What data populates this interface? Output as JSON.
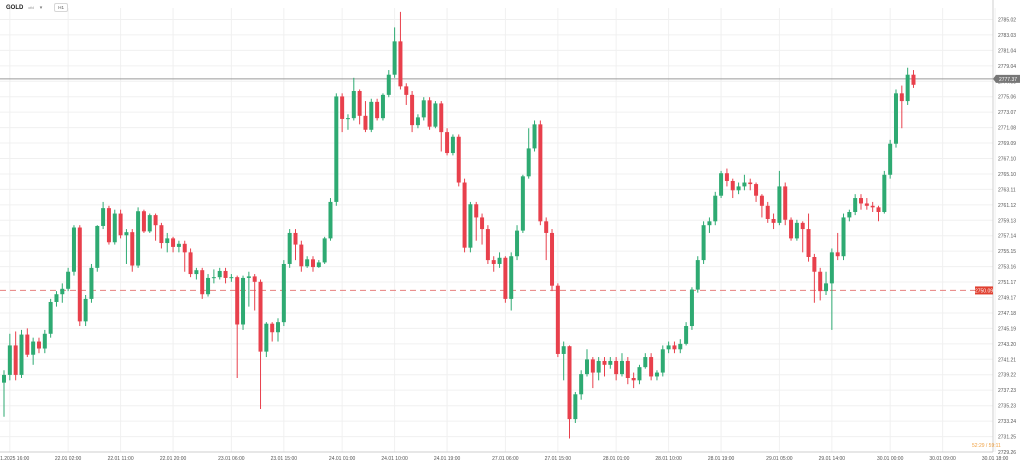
{
  "header": {
    "symbol": "GOLD",
    "symbol_sub": "cfd",
    "timeframe": "H1"
  },
  "colors": {
    "up": "#2eaa72",
    "down": "#e8404c",
    "grid": "#f0f0f0",
    "price_line": "#9a9a9a",
    "price_tag": "#777777",
    "ref_line": "#e8807e",
    "ref_tag": "#e04030",
    "countdown": "#f0a040"
  },
  "countdown": "52:29 / 59:11",
  "chart_data": {
    "type": "candlestick",
    "y_range": [
      2729.26,
      2786.5
    ],
    "y_ticks": [
      "2785.02",
      "2783.03",
      "2781.04",
      "2779.04",
      "2777.05",
      "2775.06",
      "2773.07",
      "2771.08",
      "2769.09",
      "2767.10",
      "2765.10",
      "2763.11",
      "2761.12",
      "2759.13",
      "2757.14",
      "2755.15",
      "2753.16",
      "2751.17",
      "2749.17",
      "2747.18",
      "2745.19",
      "2743.20",
      "2741.21",
      "2739.22",
      "2737.23",
      "2735.23",
      "2733.24",
      "2731.25",
      "2729.26"
    ],
    "x_ticks": [
      {
        "label": "21.01.2025  16:00",
        "index": 1
      },
      {
        "label": "22.01  02:00",
        "index": 11
      },
      {
        "label": "22.01  11:00",
        "index": 20
      },
      {
        "label": "22.01  20:00",
        "index": 29
      },
      {
        "label": "23.01  06:00",
        "index": 39
      },
      {
        "label": "23.01  15:00",
        "index": 48
      },
      {
        "label": "24.01  01:00",
        "index": 58
      },
      {
        "label": "24.01  10:00",
        "index": 67
      },
      {
        "label": "24.01  19:00",
        "index": 76
      },
      {
        "label": "27.01  06:00",
        "index": 86
      },
      {
        "label": "27.01  15:00",
        "index": 95
      },
      {
        "label": "28.01  01:00",
        "index": 105
      },
      {
        "label": "28.01  10:00",
        "index": 114
      },
      {
        "label": "28.01  19:00",
        "index": 123
      },
      {
        "label": "29.01  05:00",
        "index": 133
      },
      {
        "label": "29.01  14:00",
        "index": 142
      },
      {
        "label": "30.01  00:00",
        "index": 152
      },
      {
        "label": "30.01  09:00",
        "index": 161
      },
      {
        "label": "30.01  18:00",
        "index": 170
      }
    ],
    "current_price": "2777.37",
    "reference_price": "2750.09",
    "candles": [
      [
        2738.2,
        2739.2,
        2733.8,
        2739.8
      ],
      [
        2739.2,
        2743.0,
        2738.5,
        2744.5
      ],
      [
        2743.0,
        2739.2,
        2738.5,
        2744.8
      ],
      [
        2739.2,
        2744.4,
        2738.8,
        2745.0
      ],
      [
        2744.4,
        2741.8,
        2741.5,
        2745.2
      ],
      [
        2741.8,
        2743.5,
        2740.5,
        2744.0
      ],
      [
        2743.5,
        2742.6,
        2742.0,
        2744.0
      ],
      [
        2742.6,
        2744.5,
        2742.0,
        2745.0
      ],
      [
        2744.5,
        2748.6,
        2744.0,
        2749.0
      ],
      [
        2748.6,
        2749.6,
        2748.0,
        2750.0
      ],
      [
        2749.6,
        2750.3,
        2748.5,
        2751.0
      ],
      [
        2750.3,
        2752.5,
        2750.0,
        2753.0
      ],
      [
        2752.5,
        2758.2,
        2752.0,
        2758.5
      ],
      [
        2758.2,
        2746.1,
        2745.5,
        2758.5
      ],
      [
        2746.1,
        2749.0,
        2745.5,
        2749.5
      ],
      [
        2749.0,
        2753.0,
        2748.5,
        2753.5
      ],
      [
        2753.0,
        2758.4,
        2752.5,
        2758.5
      ],
      [
        2758.4,
        2760.7,
        2758.0,
        2761.5
      ],
      [
        2760.7,
        2756.3,
        2756.0,
        2761.0
      ],
      [
        2756.3,
        2760.0,
        2756.0,
        2760.5
      ],
      [
        2760.0,
        2757.2,
        2756.8,
        2760.5
      ],
      [
        2757.2,
        2757.6,
        2753.5,
        2758.0
      ],
      [
        2757.6,
        2753.3,
        2752.5,
        2758.0
      ],
      [
        2753.3,
        2760.3,
        2753.0,
        2760.8
      ],
      [
        2760.3,
        2757.7,
        2757.5,
        2760.5
      ],
      [
        2757.7,
        2759.8,
        2757.5,
        2760.0
      ],
      [
        2759.8,
        2758.5,
        2756.5,
        2760.0
      ],
      [
        2758.5,
        2756.2,
        2755.5,
        2758.8
      ],
      [
        2756.2,
        2756.8,
        2755.0,
        2757.5
      ],
      [
        2756.8,
        2755.7,
        2755.0,
        2757.0
      ],
      [
        2755.7,
        2756.1,
        2755.0,
        2756.5
      ],
      [
        2756.1,
        2755.0,
        2752.5,
        2756.5
      ],
      [
        2755.0,
        2752.2,
        2751.8,
        2755.5
      ],
      [
        2752.2,
        2752.7,
        2751.5,
        2753.0
      ],
      [
        2752.7,
        2749.6,
        2749.0,
        2753.0
      ],
      [
        2749.6,
        2751.7,
        2749.3,
        2752.2
      ],
      [
        2751.7,
        2751.8,
        2751.0,
        2752.8
      ],
      [
        2751.8,
        2752.6,
        2751.5,
        2753.0
      ],
      [
        2752.6,
        2751.7,
        2751.0,
        2753.0
      ],
      [
        2751.7,
        2751.8,
        2751.2,
        2752.2
      ],
      [
        2751.8,
        2745.7,
        2738.8,
        2752.0
      ],
      [
        2745.7,
        2751.7,
        2745.0,
        2752.0
      ],
      [
        2751.7,
        2751.9,
        2748.0,
        2752.5
      ],
      [
        2751.9,
        2751.2,
        2747.5,
        2752.2
      ],
      [
        2751.2,
        2742.2,
        2734.8,
        2751.5
      ],
      [
        2742.2,
        2745.8,
        2741.5,
        2746.0
      ],
      [
        2745.8,
        2744.7,
        2743.5,
        2746.0
      ],
      [
        2744.7,
        2746.0,
        2743.5,
        2746.5
      ],
      [
        2746.0,
        2753.5,
        2745.5,
        2754.0
      ],
      [
        2753.5,
        2757.5,
        2753.0,
        2758.0
      ],
      [
        2757.5,
        2756.0,
        2754.0,
        2758.0
      ],
      [
        2756.0,
        2753.2,
        2752.5,
        2756.5
      ],
      [
        2753.2,
        2754.1,
        2753.0,
        2754.5
      ],
      [
        2754.1,
        2753.1,
        2752.5,
        2754.5
      ],
      [
        2753.1,
        2753.7,
        2753.0,
        2754.0
      ],
      [
        2753.7,
        2756.8,
        2753.5,
        2757.0
      ],
      [
        2756.8,
        2761.5,
        2756.5,
        2762.0
      ],
      [
        2761.5,
        2775.1,
        2761.0,
        2775.5
      ],
      [
        2775.1,
        2772.2,
        2770.5,
        2775.5
      ],
      [
        2772.2,
        2772.3,
        2770.8,
        2772.8
      ],
      [
        2772.3,
        2775.8,
        2772.0,
        2777.5
      ],
      [
        2775.8,
        2772.6,
        2771.5,
        2776.0
      ],
      [
        2772.6,
        2770.8,
        2770.5,
        2774.5
      ],
      [
        2770.8,
        2774.4,
        2770.5,
        2774.8
      ],
      [
        2774.4,
        2772.3,
        2772.0,
        2774.8
      ],
      [
        2772.3,
        2775.3,
        2772.0,
        2775.5
      ],
      [
        2775.3,
        2777.9,
        2775.0,
        2778.5
      ],
      [
        2777.9,
        2782.2,
        2777.5,
        2784.0
      ],
      [
        2782.2,
        2776.4,
        2776.0,
        2786.0
      ],
      [
        2776.4,
        2775.3,
        2774.0,
        2776.8
      ],
      [
        2775.3,
        2771.4,
        2770.5,
        2775.8
      ],
      [
        2771.4,
        2772.4,
        2771.0,
        2772.8
      ],
      [
        2772.4,
        2774.6,
        2772.0,
        2775.0
      ],
      [
        2774.6,
        2771.2,
        2770.8,
        2775.0
      ],
      [
        2771.2,
        2774.2,
        2771.0,
        2774.5
      ],
      [
        2774.2,
        2770.5,
        2768.0,
        2774.5
      ],
      [
        2770.5,
        2767.8,
        2767.5,
        2771.0
      ],
      [
        2767.8,
        2769.9,
        2767.5,
        2770.2
      ],
      [
        2769.9,
        2764.0,
        2763.5,
        2770.2
      ],
      [
        2764.0,
        2755.6,
        2755.0,
        2764.5
      ],
      [
        2755.6,
        2761.2,
        2755.0,
        2761.5
      ],
      [
        2761.2,
        2759.5,
        2756.5,
        2761.5
      ],
      [
        2759.5,
        2758.0,
        2756.0,
        2760.0
      ],
      [
        2758.0,
        2754.0,
        2753.5,
        2758.5
      ],
      [
        2754.0,
        2753.5,
        2752.5,
        2754.5
      ],
      [
        2753.5,
        2754.3,
        2753.0,
        2755.0
      ],
      [
        2754.3,
        2749.0,
        2748.5,
        2754.5
      ],
      [
        2749.0,
        2754.5,
        2747.5,
        2755.0
      ],
      [
        2754.5,
        2757.8,
        2754.0,
        2758.5
      ],
      [
        2757.8,
        2764.8,
        2757.5,
        2765.0
      ],
      [
        2764.8,
        2768.4,
        2764.5,
        2771.0
      ],
      [
        2768.4,
        2771.5,
        2768.0,
        2772.0
      ],
      [
        2771.5,
        2759.0,
        2758.5,
        2772.0
      ],
      [
        2759.0,
        2757.5,
        2754.0,
        2759.5
      ],
      [
        2757.5,
        2750.7,
        2750.0,
        2758.0
      ],
      [
        2750.7,
        2741.9,
        2741.5,
        2751.0
      ],
      [
        2741.9,
        2742.9,
        2738.5,
        2743.5
      ],
      [
        2742.9,
        2733.5,
        2731.0,
        2743.0
      ],
      [
        2733.5,
        2736.7,
        2733.0,
        2737.0
      ],
      [
        2736.7,
        2739.3,
        2736.0,
        2739.8
      ],
      [
        2739.3,
        2741.2,
        2739.0,
        2742.5
      ],
      [
        2741.2,
        2739.5,
        2737.5,
        2741.5
      ],
      [
        2739.5,
        2741.0,
        2738.5,
        2741.5
      ],
      [
        2741.0,
        2740.5,
        2739.0,
        2741.5
      ],
      [
        2740.5,
        2741.0,
        2740.0,
        2741.5
      ],
      [
        2741.0,
        2739.3,
        2738.5,
        2741.5
      ],
      [
        2739.3,
        2741.0,
        2739.0,
        2742.0
      ],
      [
        2741.0,
        2738.8,
        2738.0,
        2741.5
      ],
      [
        2738.8,
        2738.5,
        2737.5,
        2739.5
      ],
      [
        2738.5,
        2740.2,
        2738.0,
        2740.5
      ],
      [
        2740.2,
        2741.5,
        2740.0,
        2742.0
      ],
      [
        2741.5,
        2739.0,
        2738.5,
        2742.0
      ],
      [
        2739.0,
        2739.5,
        2738.5,
        2739.8
      ],
      [
        2739.5,
        2742.5,
        2739.0,
        2743.0
      ],
      [
        2742.5,
        2743.0,
        2742.0,
        2743.5
      ],
      [
        2743.0,
        2742.5,
        2742.0,
        2743.5
      ],
      [
        2742.5,
        2743.2,
        2742.0,
        2743.8
      ],
      [
        2743.2,
        2745.5,
        2743.0,
        2746.0
      ],
      [
        2745.5,
        2750.2,
        2745.0,
        2750.5
      ],
      [
        2750.2,
        2754.0,
        2749.8,
        2754.5
      ],
      [
        2754.0,
        2758.5,
        2753.5,
        2759.0
      ],
      [
        2758.5,
        2759.0,
        2757.5,
        2759.5
      ],
      [
        2759.0,
        2762.3,
        2758.5,
        2762.8
      ],
      [
        2762.3,
        2765.2,
        2762.0,
        2765.5
      ],
      [
        2765.2,
        2764.2,
        2763.5,
        2765.8
      ],
      [
        2764.2,
        2763.0,
        2762.0,
        2764.5
      ],
      [
        2763.0,
        2763.5,
        2762.5,
        2764.0
      ],
      [
        2763.5,
        2764.0,
        2763.0,
        2765.0
      ],
      [
        2764.0,
        2763.8,
        2763.0,
        2764.5
      ],
      [
        2763.8,
        2762.3,
        2761.5,
        2764.0
      ],
      [
        2762.3,
        2761.0,
        2759.5,
        2762.5
      ],
      [
        2761.0,
        2759.3,
        2758.8,
        2761.5
      ],
      [
        2759.3,
        2758.8,
        2758.0,
        2760.0
      ],
      [
        2758.8,
        2763.5,
        2758.5,
        2765.5
      ],
      [
        2763.5,
        2759.2,
        2758.5,
        2764.0
      ],
      [
        2759.2,
        2756.8,
        2756.5,
        2759.5
      ],
      [
        2756.8,
        2758.8,
        2756.5,
        2759.2
      ],
      [
        2758.8,
        2758.0,
        2755.0,
        2759.0
      ],
      [
        2758.0,
        2754.4,
        2753.8,
        2760.0
      ],
      [
        2754.4,
        2752.5,
        2748.5,
        2754.8
      ],
      [
        2752.5,
        2750.0,
        2748.8,
        2753.0
      ],
      [
        2750.0,
        2751.0,
        2749.5,
        2752.5
      ],
      [
        2751.0,
        2755.0,
        2745.0,
        2755.5
      ],
      [
        2755.0,
        2754.5,
        2754.0,
        2757.5
      ],
      [
        2754.5,
        2759.5,
        2754.0,
        2760.0
      ],
      [
        2759.5,
        2760.2,
        2759.0,
        2760.5
      ],
      [
        2760.2,
        2762.0,
        2759.8,
        2762.5
      ],
      [
        2762.0,
        2761.3,
        2760.5,
        2762.5
      ],
      [
        2761.3,
        2761.0,
        2760.5,
        2762.0
      ],
      [
        2761.0,
        2760.8,
        2760.2,
        2761.5
      ],
      [
        2760.8,
        2760.2,
        2759.0,
        2761.0
      ],
      [
        2760.2,
        2765.0,
        2760.0,
        2765.5
      ],
      [
        2765.0,
        2769.0,
        2764.5,
        2769.5
      ],
      [
        2769.0,
        2775.5,
        2768.5,
        2776.0
      ],
      [
        2775.5,
        2774.5,
        2771.0,
        2776.5
      ],
      [
        2774.5,
        2777.9,
        2774.0,
        2778.8
      ],
      [
        2777.9,
        2776.6,
        2776.2,
        2778.5
      ]
    ]
  }
}
